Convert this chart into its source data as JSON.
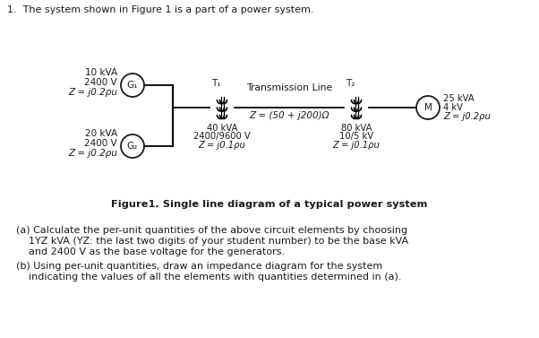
{
  "title_text": "1.  The system shown in Figure 1 is a part of a power system.",
  "figure_caption": "Figure1. Single line diagram of a typical power system",
  "bg_color": "#ffffff",
  "text_color": "#1a1a1a",
  "G1_label": "G₁",
  "G2_label": "G₂",
  "M_label": "M",
  "T1_label": "T₁",
  "T2_label": "T₂",
  "G1_specs": [
    "10 kVA",
    "2400 V",
    "Z = j0.2ρu"
  ],
  "G2_specs": [
    "20 kVA",
    "2400 V",
    "Z = j0.2ρu"
  ],
  "T1_specs": [
    "40 kVA",
    "2400/9600 V",
    "Z = j0.1ρu"
  ],
  "T2_specs": [
    "80 kVA",
    "10/5 kV",
    "Z = j0.1ρu"
  ],
  "M_specs": [
    "25 kVA",
    "4 kV",
    "Z = j0.2ρu"
  ],
  "TL_label": "Transmission Line",
  "TL_impedance": "Z = (50 + j200)Ω",
  "qa_line1": "(a) Calculate the per-unit quantities of the above circuit elements by choosing",
  "qa_line2": "    1YZ kVA (YZ: the last two digits of your student number) to be the base kVA",
  "qa_line3": "    and 2400 V as the base voltage for the generators.",
  "qb_line1": "(b) Using per-unit quantities, draw an impedance diagram for the system",
  "qb_line2": "    indicating the values of all the elements with quantities determined in (a)."
}
